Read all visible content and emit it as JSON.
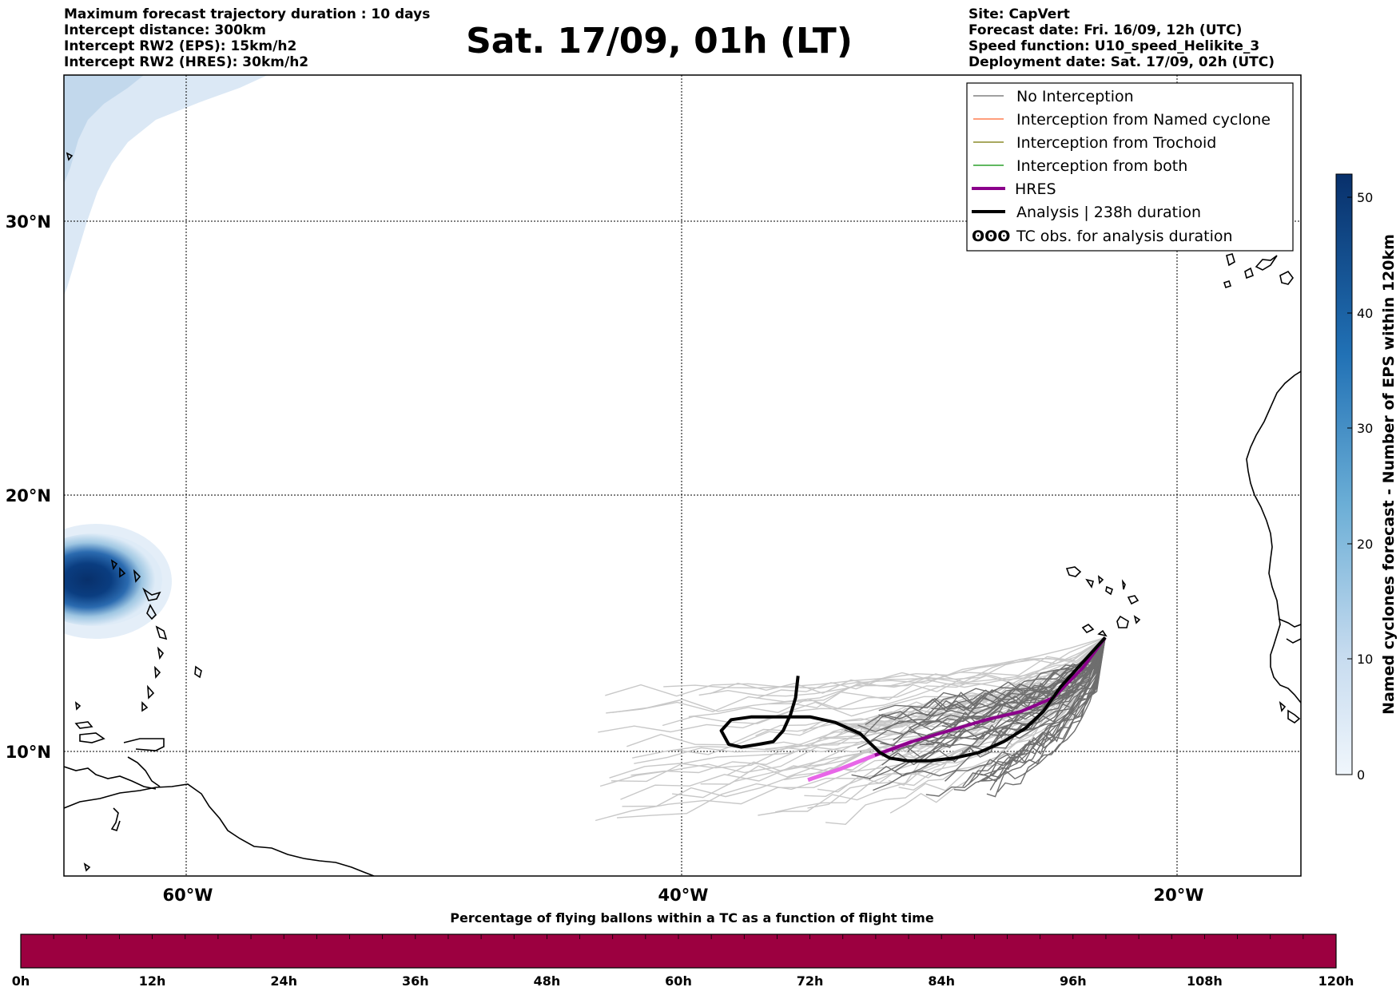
{
  "header": {
    "left_lines": [
      "Maximum forecast trajectory duration : 10 days",
      "Intercept distance: 300km",
      "Intercept RW2 (EPS):  15km/h2",
      "Intercept RW2 (HRES): 30km/h2"
    ],
    "title": "Sat. 17/09, 01h (LT)",
    "right_lines": [
      "Site: CapVert",
      "Forecast date: Fri. 16/09, 12h (UTC)",
      "Speed function: U10_speed_Helikite_3",
      "Deployment date: Sat. 17/09, 02h (UTC)"
    ]
  },
  "map": {
    "lon_labels": [
      "60°W",
      "40°W",
      "20°W"
    ],
    "lat_labels": [
      "30°N",
      "20°N",
      "10°N"
    ],
    "legend": [
      {
        "label": "No Interception",
        "color": "#808080",
        "kind": "line"
      },
      {
        "label": "Interception from Named cyclone",
        "color": "#ff7f50",
        "kind": "line"
      },
      {
        "label": "Interception from Trochoid",
        "color": "#8b8b2a",
        "kind": "line"
      },
      {
        "label": "Interception from both",
        "color": "#2ca02c",
        "kind": "line"
      },
      {
        "label": "HRES",
        "color": "#8b008b",
        "kind": "thick"
      },
      {
        "label": "Analysis | 238h duration",
        "color": "#000000",
        "kind": "thick"
      },
      {
        "label": "TC obs. for analysis duration",
        "color": "#000000",
        "kind": "symbol"
      }
    ]
  },
  "colorbar_right": {
    "title": "Named cyclones forecast - Number of EPS within 120km",
    "ticks": [
      "0",
      "10",
      "20",
      "30",
      "40",
      "50"
    ],
    "color_low": "#eef4fb",
    "color_high": "#08306b"
  },
  "bottom_bar": {
    "title": "Percentage of flying ballons within a TC as a function of flight time",
    "ticks": [
      "0h",
      "12h",
      "24h",
      "36h",
      "48h",
      "60h",
      "72h",
      "84h",
      "96h",
      "108h",
      "120h"
    ],
    "color": "#9c0040"
  },
  "chart_data": {
    "type": "map",
    "projection": "PlateCarree",
    "lon_range": [
      -65,
      -15
    ],
    "lat_range": [
      5,
      35
    ],
    "gridlines": {
      "lon": [
        -60,
        -40,
        -20
      ],
      "lat": [
        10,
        20,
        30
      ]
    },
    "hres_track": {
      "name": "HRES",
      "lon": [
        -22.9,
        -23.8,
        -25.0,
        -26.3,
        -27.7,
        -29.2,
        -30.7,
        -32.2,
        -33.6,
        -34.9
      ],
      "lat": [
        14.8,
        13.7,
        12.6,
        12.1,
        11.8,
        11.4,
        11.0,
        10.5,
        10.0,
        9.6
      ]
    },
    "analysis_track": {
      "name": "Analysis | 238h duration",
      "lon": [
        -22.9,
        -23.8,
        -24.7,
        -25.4,
        -26.1,
        -27.0,
        -28.0,
        -29.0,
        -30.0,
        -30.9,
        -31.6,
        -32.0,
        -32.8,
        -33.8,
        -34.8,
        -36.0,
        -37.2,
        -38.0,
        -38.4,
        -38.1,
        -37.6,
        -36.9,
        -36.3,
        -35.9,
        -35.6,
        -35.4,
        -35.3
      ],
      "lat": [
        14.8,
        13.9,
        13.0,
        12.1,
        11.5,
        11.0,
        10.6,
        10.4,
        10.3,
        10.3,
        10.4,
        10.6,
        11.3,
        11.7,
        11.9,
        11.9,
        11.9,
        11.8,
        11.4,
        10.9,
        10.8,
        10.9,
        11.0,
        11.4,
        12.0,
        12.6,
        13.4
      ]
    },
    "eps_cyclone_density": {
      "center_lon": -63.8,
      "center_lat": 16.7,
      "max": 50
    }
  }
}
